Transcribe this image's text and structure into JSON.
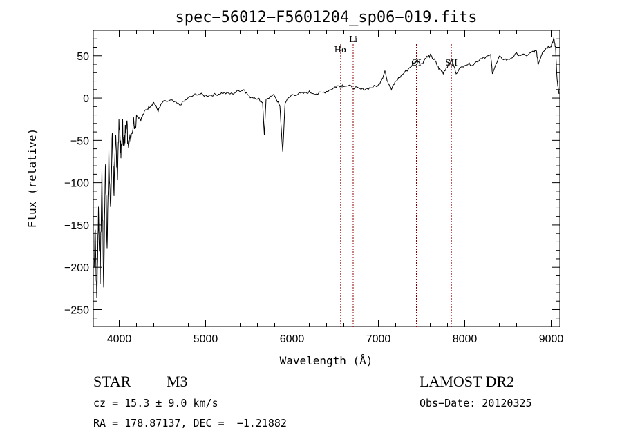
{
  "chart_data": {
    "type": "line",
    "title": "spec−56012−F5601204_sp06−019.fits",
    "xlabel": "Wavelength (Å)",
    "ylabel": "Flux (relative)",
    "xlim": [
      3700,
      9100
    ],
    "ylim": [
      -270,
      80
    ],
    "xticks": [
      4000,
      5000,
      6000,
      7000,
      8000,
      9000
    ],
    "xtick_labels": [
      "4000",
      "5000",
      "6000",
      "7000",
      "8000",
      "9000"
    ],
    "yticks": [
      50,
      0,
      -50,
      -100,
      -150,
      -200,
      -250
    ],
    "ytick_labels": [
      "50",
      "0",
      "−50",
      "−100",
      "−150",
      "−200",
      "−250"
    ],
    "grid": false,
    "line_color": "#000000",
    "marker_color": "#8b0000",
    "spectral_lines": [
      {
        "label": "Hα",
        "x": 6563
      },
      {
        "label": "Li",
        "x": 6708
      },
      {
        "label": "OI",
        "x": 7440
      },
      {
        "label": "SII",
        "x": 7845
      }
    ],
    "series": [
      {
        "x": [
          3710,
          3720,
          3740,
          3760,
          3780,
          3800,
          3820,
          3840,
          3860,
          3880,
          3900,
          3920,
          3940,
          3960,
          3980,
          4000,
          4020,
          4040,
          4060,
          4080,
          4100,
          4150,
          4200,
          4250,
          4300,
          4350,
          4400,
          4450,
          4500,
          4600,
          4700,
          4800,
          4900,
          5000,
          5100,
          5200,
          5300,
          5400,
          5450,
          5500,
          5600,
          5660,
          5680,
          5700,
          5800,
          5860,
          5893,
          5920,
          6000,
          6100,
          6200,
          6300,
          6400,
          6500,
          6560,
          6600,
          6700,
          6800,
          6900,
          7000,
          7050,
          7080,
          7100,
          7150,
          7200,
          7300,
          7400,
          7450,
          7500,
          7550,
          7600,
          7650,
          7700,
          7750,
          7800,
          7850,
          7900,
          8000,
          8100,
          8200,
          8300,
          8320,
          8400,
          8500,
          8600,
          8700,
          8800,
          8830,
          8850,
          8900,
          8950,
          9000,
          9030,
          9050,
          9070,
          9090
        ],
        "y": [
          -200,
          -150,
          -240,
          -130,
          -210,
          -90,
          -225,
          -70,
          -180,
          -60,
          -140,
          -40,
          -110,
          -50,
          -90,
          -25,
          -70,
          -35,
          -60,
          -20,
          -50,
          -35,
          -20,
          -25,
          -15,
          -10,
          -5,
          -15,
          -5,
          -3,
          -8,
          0,
          5,
          3,
          4,
          6,
          5,
          9,
          10,
          2,
          0,
          -5,
          -45,
          0,
          3,
          -10,
          -65,
          -5,
          4,
          5,
          7,
          5,
          8,
          13,
          15,
          15,
          13,
          10,
          12,
          15,
          25,
          32,
          22,
          10,
          20,
          30,
          40,
          45,
          40,
          48,
          50,
          45,
          35,
          30,
          38,
          45,
          30,
          40,
          40,
          48,
          50,
          30,
          48,
          45,
          52,
          50,
          55,
          55,
          40,
          55,
          60,
          62,
          70,
          60,
          20,
          5
        ]
      }
    ]
  },
  "info": {
    "object_class": "STAR",
    "subclass": "M3",
    "survey": "LAMOST DR2",
    "cz": "cz = 15.3 ± 9.0 km/s",
    "obs_date": "Obs−Date: 20120325",
    "coords": "RA = 178.87137, DEC =  −1.21882"
  }
}
